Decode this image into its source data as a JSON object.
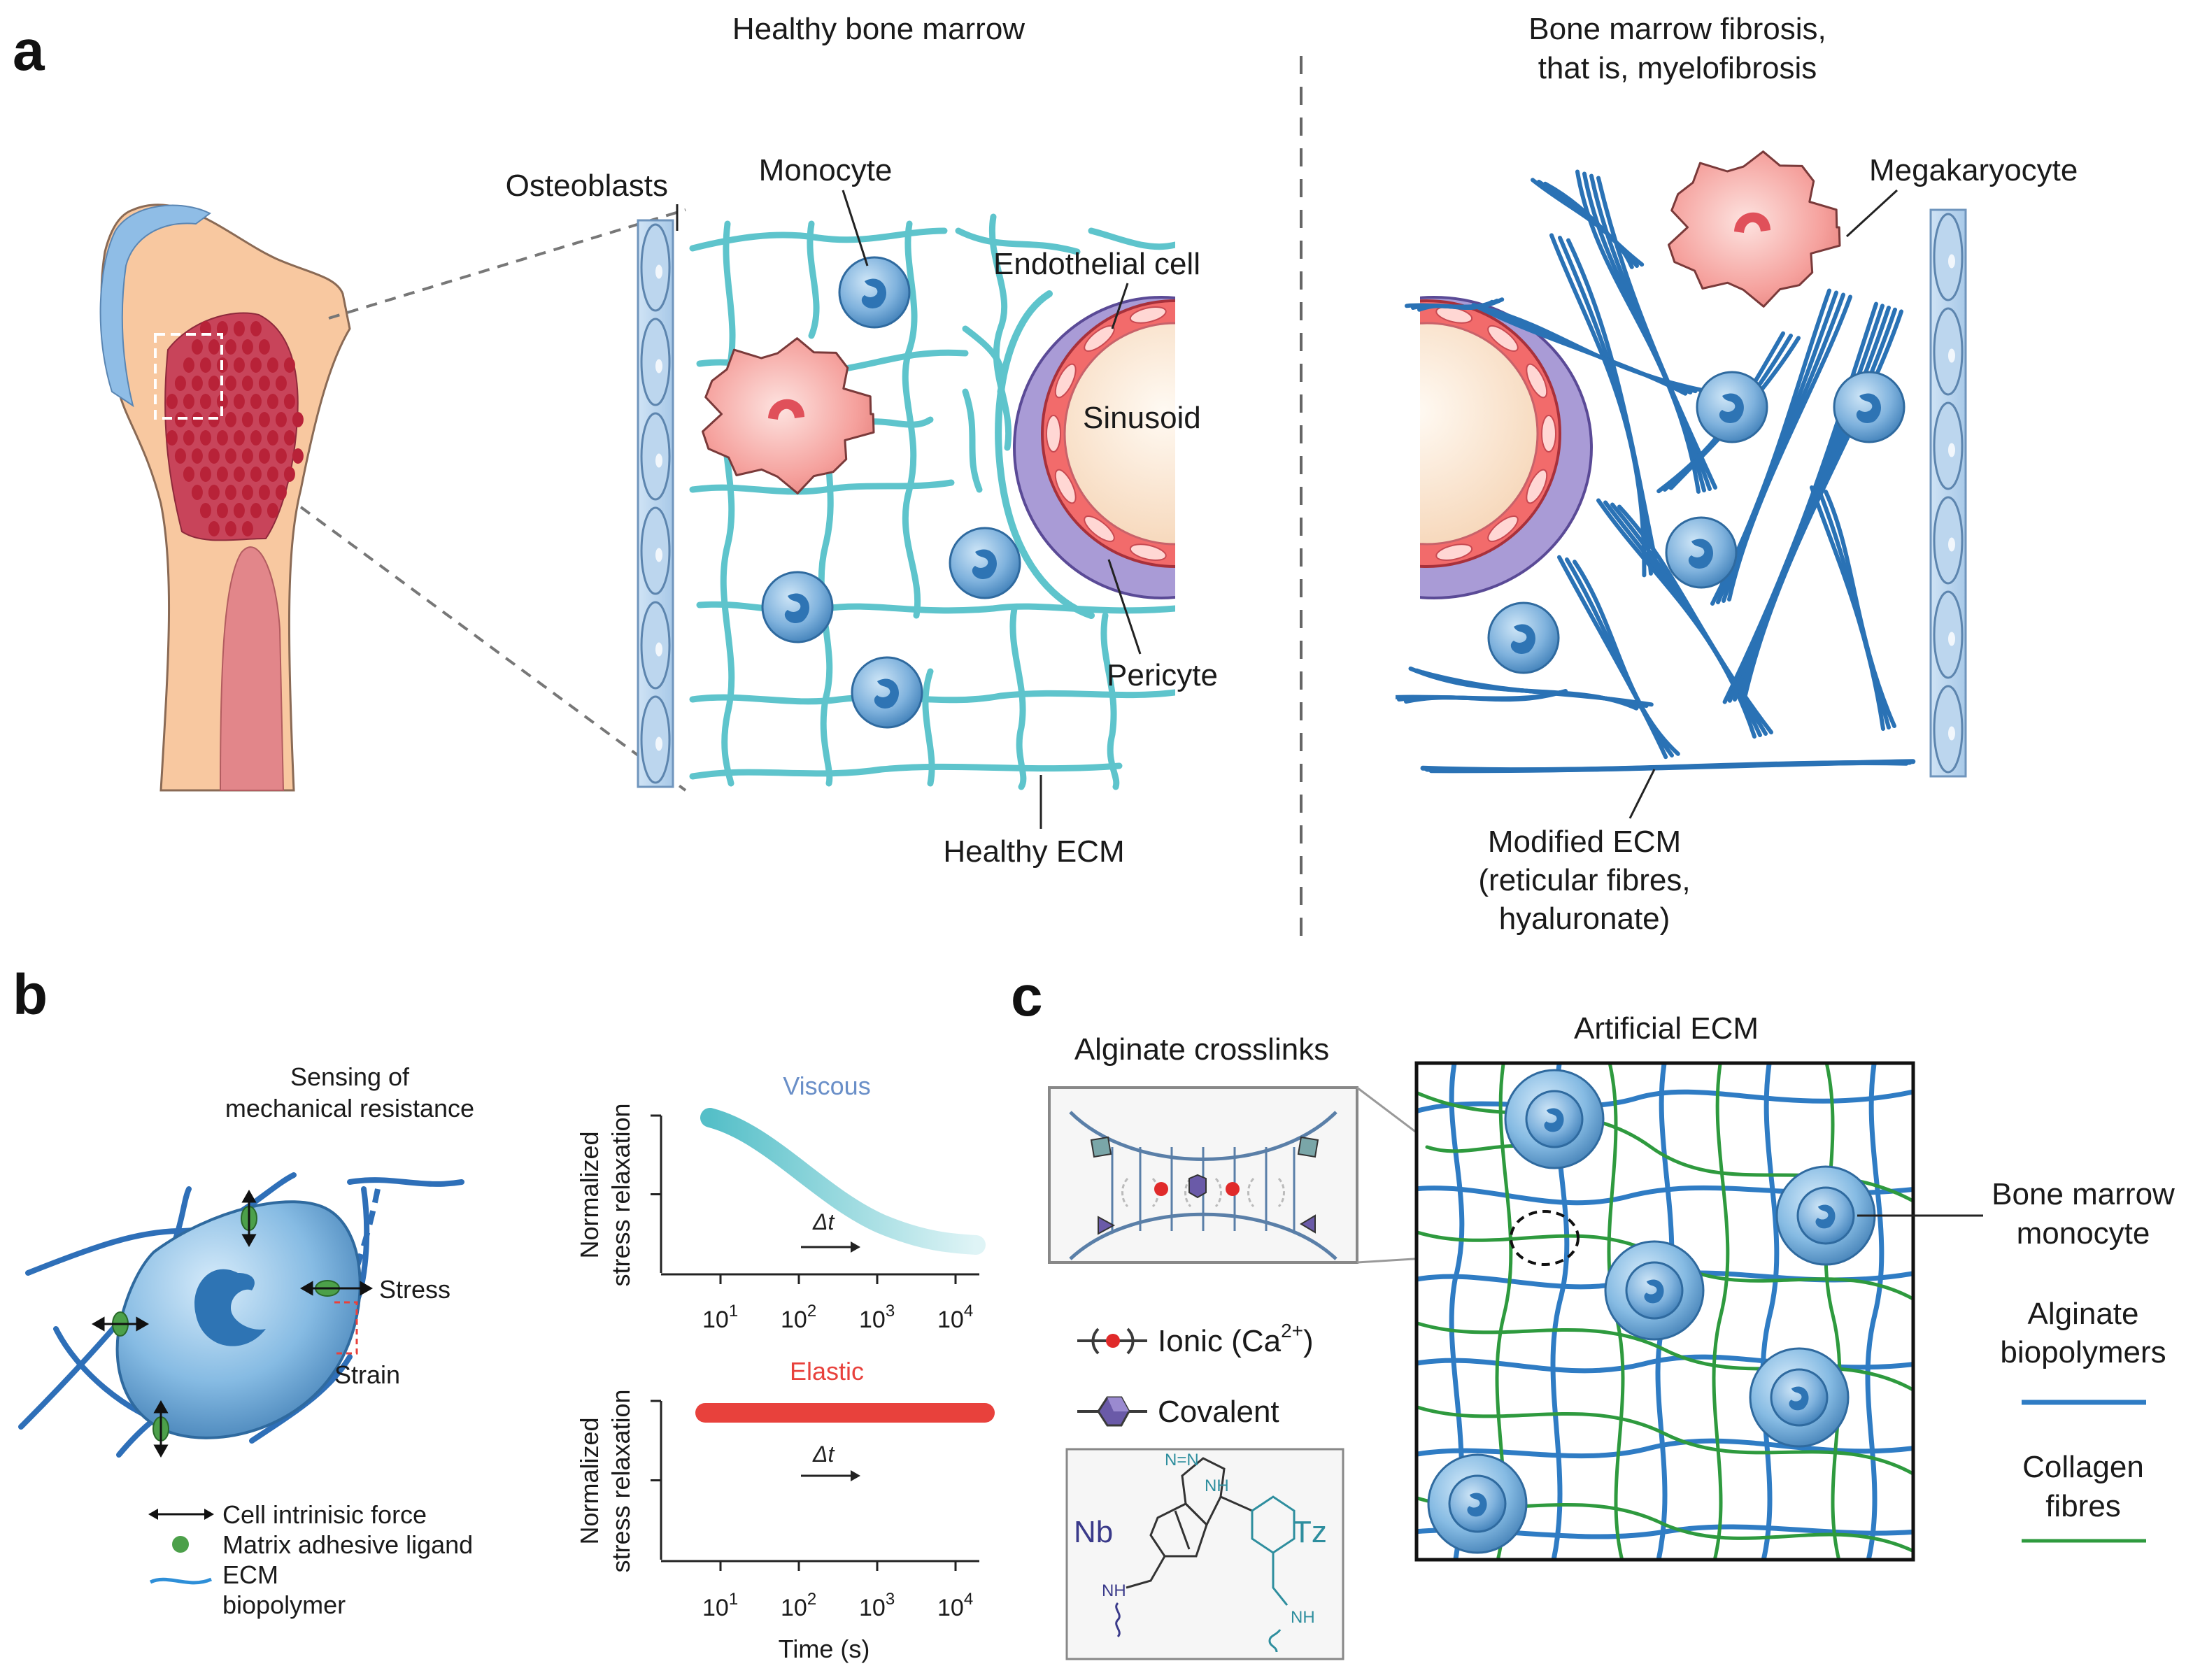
{
  "panels": {
    "a": {
      "letter": "a",
      "healthy": {
        "title": "Healthy bone marrow",
        "labels": {
          "osteoblasts": "Osteoblasts",
          "monocyte": "Monocyte",
          "endothelial": "Endothelial cell",
          "sinusoid": "Sinusoid",
          "pericyte": "Pericyte",
          "healthy_ecm": "Healthy ECM"
        }
      },
      "fibrosis": {
        "title_line1": "Bone marrow fibrosis,",
        "title_line2": "that is, myelofibrosis",
        "labels": {
          "megakaryocyte": "Megakaryocyte",
          "modified_ecm_l1": "Modified ECM",
          "modified_ecm_l2": "(reticular fibres,",
          "modified_ecm_l3": "hyaluronate)"
        }
      }
    },
    "b": {
      "letter": "b",
      "sensing_l1": "Sensing of",
      "sensing_l2": "mechanical resistance",
      "stress": "Stress",
      "strain": "Strain",
      "legend": {
        "force": "Cell intrinisic force",
        "ligand": "Matrix adhesive ligand",
        "ecm_l1": "ECM",
        "ecm_l2": "biopolymer"
      },
      "charts": {
        "viscous_title": "Viscous",
        "elastic_title": "Elastic",
        "ylabel_l1": "Normalized",
        "ylabel_l2": "stress relaxation",
        "xlabel": "Time (s)",
        "delta": "Δt",
        "ticks": [
          "10",
          "10",
          "10",
          "10"
        ],
        "tick_exponents": [
          "1",
          "2",
          "3",
          "4"
        ]
      }
    },
    "c": {
      "letter": "c",
      "crosslinks_title": "Alginate crosslinks",
      "ionic_prefix": "Ionic (Ca",
      "ionic_sup": "2+",
      "ionic_suffix": ")",
      "covalent": "Covalent",
      "nb": "Nb",
      "tz": "Tz",
      "nh": "NH",
      "nn": "N=N",
      "artificial_title": "Artificial ECM",
      "monocyte_l1": "Bone marrow",
      "monocyte_l2": "monocyte",
      "alginate_l1": "Alginate",
      "alginate_l2": "biopolymers",
      "collagen_l1": "Collagen",
      "collagen_l2": "fibres"
    }
  },
  "colors": {
    "healthy_ecm": "#5ec4cc",
    "fibrosis_ecm": "#2a72b5",
    "alginate": "#2f7cc4",
    "collagen": "#2e9a3e",
    "elastic": "#e8413c",
    "viscous": "#5ec4cc",
    "bone": "#f8c8a0",
    "marrow": "#b8303e"
  }
}
